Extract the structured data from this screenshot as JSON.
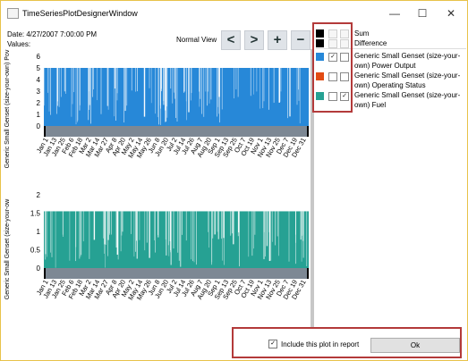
{
  "window": {
    "title": "TimeSeriesPlotDesignerWindow",
    "controls": {
      "minimize": "—",
      "maximize": "☐",
      "close": "✕"
    }
  },
  "info": {
    "date_label": "Date:",
    "date_value": "4/27/2007 7:00:00 PM",
    "values_label": "Values:"
  },
  "nav": {
    "view_label": "Normal View",
    "prev": "<",
    "next": ">",
    "zoom_in": "+",
    "zoom_out": "−"
  },
  "legend": [
    {
      "label": "Sum",
      "color": "#000000",
      "checked_a": false,
      "checked_b": false,
      "enabled": false
    },
    {
      "label": "Difference",
      "color": "#000000",
      "checked_a": false,
      "checked_b": false,
      "enabled": false
    },
    {
      "label": "Generic Small Genset (size-your-own) Power Output",
      "color": "#2788d8",
      "checked_a": true,
      "checked_b": false,
      "enabled": true
    },
    {
      "label": "Generic Small Genset (size-your-own) Operating Status",
      "color": "#e24b13",
      "checked_a": false,
      "checked_b": false,
      "enabled": true
    },
    {
      "label": "Generic Small Genset (size-your-own) Fuel",
      "color": "#26a193",
      "checked_a": false,
      "checked_b": true,
      "enabled": true
    }
  ],
  "footer": {
    "include_label": "Include this plot in report",
    "include_checked": true,
    "ok_label": "Ok"
  },
  "chart_data": [
    {
      "type": "area",
      "ylabel": "Generic Small Genset (size-your-own) Pov",
      "color": "#2788d8",
      "ylim": [
        0,
        6
      ],
      "yticks": [
        "0",
        "1",
        "2",
        "3",
        "4",
        "5",
        "6"
      ],
      "level": 5,
      "categories": [
        "Jan 1",
        "Jan 13",
        "Jan 25",
        "Feb 6",
        "Feb 18",
        "Mar 2",
        "Mar 14",
        "Mar 27",
        "Apr 8",
        "Apr 20",
        "May 2",
        "May 14",
        "May 26",
        "Jun 8",
        "Jun 20",
        "Jul 2",
        "Jul 14",
        "Jul 26",
        "Aug 7",
        "Aug 20",
        "Sep 1",
        "Sep 13",
        "Sep 25",
        "Oct 7",
        "Oct 19",
        "Nov 1",
        "Nov 13",
        "Nov 25",
        "Dec 7",
        "Dec 19",
        "Dec 31"
      ]
    },
    {
      "type": "area",
      "ylabel": "Generic Small Genset (size-your-ow",
      "color": "#26a193",
      "ylim": [
        0,
        2
      ],
      "yticks": [
        "0",
        "0.5",
        "1",
        "1.5",
        "2"
      ],
      "level": 1.55,
      "categories": [
        "Jan 1",
        "Jan 13",
        "Jan 25",
        "Feb 6",
        "Feb 18",
        "Mar 2",
        "Mar 14",
        "Mar 27",
        "Apr 8",
        "Apr 20",
        "May 2",
        "May 14",
        "May 26",
        "Jun 8",
        "Jun 20",
        "Jul 2",
        "Jul 14",
        "Jul 26",
        "Aug 7",
        "Aug 20",
        "Sep 1",
        "Sep 13",
        "Sep 25",
        "Oct 7",
        "Oct 19",
        "Nov 1",
        "Nov 13",
        "Nov 25",
        "Dec 7",
        "Dec 19",
        "Dec 31"
      ]
    }
  ]
}
